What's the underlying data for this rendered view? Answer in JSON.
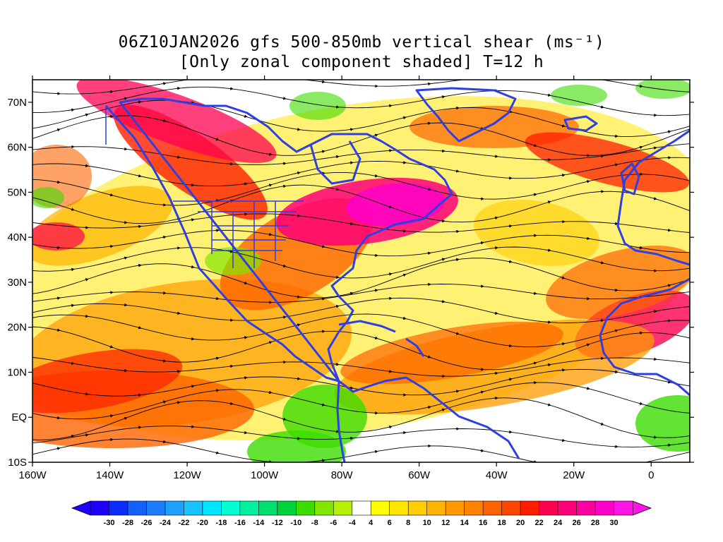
{
  "title": {
    "line1": "06Z10JAN2026 gfs 500-850mb vertical shear (ms⁻¹)",
    "line2": "[Only zonal component shaded] T=12 h"
  },
  "map": {
    "lon_range": [
      -160,
      10
    ],
    "lat_range": [
      -10,
      75
    ],
    "lat_ticks": [
      {
        "value": 70,
        "label": "70N"
      },
      {
        "value": 60,
        "label": "60N"
      },
      {
        "value": 50,
        "label": "50N"
      },
      {
        "value": 40,
        "label": "40N"
      },
      {
        "value": 30,
        "label": "30N"
      },
      {
        "value": 20,
        "label": "20N"
      },
      {
        "value": 10,
        "label": "10N"
      },
      {
        "value": 0,
        "label": "EQ"
      },
      {
        "value": -10,
        "label": "10S"
      }
    ],
    "lon_ticks": [
      {
        "value": -160,
        "label": "160W"
      },
      {
        "value": -140,
        "label": "140W"
      },
      {
        "value": -120,
        "label": "120W"
      },
      {
        "value": -100,
        "label": "100W"
      },
      {
        "value": -80,
        "label": "80W"
      },
      {
        "value": -60,
        "label": "60W"
      },
      {
        "value": -40,
        "label": "40W"
      },
      {
        "value": -20,
        "label": "20W"
      },
      {
        "value": 0,
        "label": "0"
      }
    ],
    "coastline_color": "#2f3fe0",
    "streamline_color": "#000000"
  },
  "colorbar": {
    "labels": [
      "-30",
      "-28",
      "-26",
      "-24",
      "-22",
      "-20",
      "-18",
      "-16",
      "-14",
      "-12",
      "-10",
      "-8",
      "-6",
      "-4",
      "4",
      "6",
      "8",
      "10",
      "12",
      "14",
      "16",
      "18",
      "20",
      "22",
      "24",
      "26",
      "28",
      "30"
    ],
    "colors": [
      "#1e00ff",
      "#0a2cff",
      "#1460ff",
      "#1e7dff",
      "#1ea0ff",
      "#19c3ff",
      "#00e6ff",
      "#00ffd2",
      "#00f0a0",
      "#00e06e",
      "#00d23c",
      "#3cdc00",
      "#82e600",
      "#b4f000",
      "#ffffff",
      "#ffff00",
      "#ffe600",
      "#ffcd00",
      "#ffb400",
      "#ff9b00",
      "#ff8200",
      "#ff6400",
      "#ff4600",
      "#ff1e00",
      "#ff0050",
      "#ff0078",
      "#ff00a0",
      "#ff00c8",
      "#ff14e6"
    ]
  }
}
